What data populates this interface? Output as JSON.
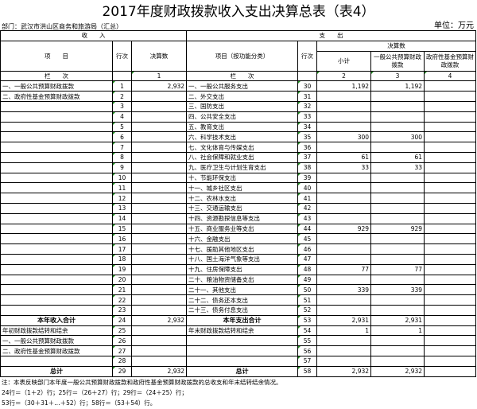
{
  "title": "2017年度财政拨款收入支出决算总表（表4）",
  "department": "部门：武汉市洪山区商务和旅游局（汇总）",
  "unit": "单位：万元",
  "header": {
    "income": "收　　入",
    "expense": "支　　出",
    "item": "项　　目",
    "row_no": "行次",
    "amount": "决算数",
    "item_func": "项目（按功能分类）",
    "amount_group": "决算数",
    "subtotal": "小计",
    "general": "一般公共预算财政拨款",
    "fund": "政府性基金预算财政拨款",
    "col_label": "栏　　次",
    "col1": "1",
    "col2": "2",
    "col3": "3",
    "col4": "4"
  },
  "rows": [
    {
      "li": "一、一般公共预算财政拨款",
      "ln": "1",
      "la": "2,932",
      "ri": "一、一般公共服务支出",
      "rn": "30",
      "s": "1,192",
      "g": "1,192",
      "f": ""
    },
    {
      "li": "二、政府性基金预算财政拨款",
      "ln": "2",
      "la": "",
      "ri": "二、外交支出",
      "rn": "31",
      "s": "",
      "g": "",
      "f": ""
    },
    {
      "li": "",
      "ln": "3",
      "la": "",
      "ri": "三、国防支出",
      "rn": "32",
      "s": "",
      "g": "",
      "f": ""
    },
    {
      "li": "",
      "ln": "4",
      "la": "",
      "ri": "四、公共安全支出",
      "rn": "33",
      "s": "",
      "g": "",
      "f": ""
    },
    {
      "li": "",
      "ln": "5",
      "la": "",
      "ri": "五、教育支出",
      "rn": "34",
      "s": "",
      "g": "",
      "f": ""
    },
    {
      "li": "",
      "ln": "6",
      "la": "",
      "ri": "六、科学技术支出",
      "rn": "35",
      "s": "300",
      "g": "300",
      "f": ""
    },
    {
      "li": "",
      "ln": "7",
      "la": "",
      "ri": "七、文化体育与传媒支出",
      "rn": "36",
      "s": "",
      "g": "",
      "f": ""
    },
    {
      "li": "",
      "ln": "8",
      "la": "",
      "ri": "八、社会保障和就业支出",
      "rn": "37",
      "s": "61",
      "g": "61",
      "f": ""
    },
    {
      "li": "",
      "ln": "9",
      "la": "",
      "ri": "九、医疗卫生与计划生育支出",
      "rn": "38",
      "s": "33",
      "g": "33",
      "f": ""
    },
    {
      "li": "",
      "ln": "10",
      "la": "",
      "ri": "十、节能环保支出",
      "rn": "39",
      "s": "",
      "g": "",
      "f": ""
    },
    {
      "li": "",
      "ln": "11",
      "la": "",
      "ri": "十一、城乡社区支出",
      "rn": "40",
      "s": "",
      "g": "",
      "f": ""
    },
    {
      "li": "",
      "ln": "12",
      "la": "",
      "ri": "十二、农林水支出",
      "rn": "41",
      "s": "",
      "g": "",
      "f": ""
    },
    {
      "li": "",
      "ln": "13",
      "la": "",
      "ri": "十三、交通运输支出",
      "rn": "42",
      "s": "",
      "g": "",
      "f": ""
    },
    {
      "li": "",
      "ln": "14",
      "la": "",
      "ri": "十四、资源勘探信息等支出",
      "rn": "43",
      "s": "",
      "g": "",
      "f": ""
    },
    {
      "li": "",
      "ln": "15",
      "la": "",
      "ri": "十五、商业服务业等支出",
      "rn": "44",
      "s": "929",
      "g": "929",
      "f": ""
    },
    {
      "li": "",
      "ln": "16",
      "la": "",
      "ri": "十六、金融支出",
      "rn": "45",
      "s": "",
      "g": "",
      "f": ""
    },
    {
      "li": "",
      "ln": "17",
      "la": "",
      "ri": "十七、援助其他地区支出",
      "rn": "46",
      "s": "",
      "g": "",
      "f": ""
    },
    {
      "li": "",
      "ln": "18",
      "la": "",
      "ri": "十八、国土海洋气象等支出",
      "rn": "47",
      "s": "",
      "g": "",
      "f": ""
    },
    {
      "li": "",
      "ln": "19",
      "la": "",
      "ri": "十九、住房保障支出",
      "rn": "48",
      "s": "77",
      "g": "77",
      "f": ""
    },
    {
      "li": "",
      "ln": "20",
      "la": "",
      "ri": "二十、粮油物资储备支出",
      "rn": "49",
      "s": "",
      "g": "",
      "f": ""
    },
    {
      "li": "",
      "ln": "21",
      "la": "",
      "ri": "二十一、其他支出",
      "rn": "50",
      "s": "339",
      "g": "339",
      "f": ""
    },
    {
      "li": "",
      "ln": "22",
      "la": "",
      "ri": "二十二、债务还本支出",
      "rn": "51",
      "s": "",
      "g": "",
      "f": ""
    },
    {
      "li": "",
      "ln": "23",
      "la": "",
      "ri": "二十三、债务付息支出",
      "rn": "52",
      "s": "",
      "g": "",
      "f": ""
    },
    {
      "li": "本年收入合计",
      "ln": "24",
      "la": "2,932",
      "ri": "本年支出合计",
      "rn": "53",
      "s": "2,931",
      "g": "2,931",
      "f": "",
      "bold": true
    },
    {
      "li": "年初财政拨款结转和结余",
      "ln": "25",
      "la": "",
      "ri": "年末财政拨款结转和结余",
      "rn": "54",
      "s": "1",
      "g": "1",
      "f": ""
    },
    {
      "li": "一、一般公共预算财政拨款",
      "ln": "26",
      "la": "",
      "ri": "",
      "rn": "55",
      "s": "",
      "g": "",
      "f": ""
    },
    {
      "li": "二、政府性基金预算财政拨款",
      "ln": "27",
      "la": "",
      "ri": "",
      "rn": "56",
      "s": "",
      "g": "",
      "f": ""
    },
    {
      "li": "",
      "ln": "28",
      "la": "",
      "ri": "",
      "rn": "57",
      "s": "",
      "g": "",
      "f": ""
    },
    {
      "li": "总计",
      "ln": "29",
      "la": "2,932",
      "ri": "总计",
      "rn": "58",
      "s": "2,932",
      "g": "2,932",
      "f": "",
      "bold": true
    }
  ],
  "notes": [
    "注：本表反映部门本年度一般公共预算财政拨款和政府性基金预算财政拨款的总收支和年末结转结余情况。",
    "24行＝（1＋2）行；25行＝（26＋27）行；29行＝（24＋25）行；",
    "53行＝（30＋31＋…＋52）行；58行＝（53＋54）行。"
  ]
}
